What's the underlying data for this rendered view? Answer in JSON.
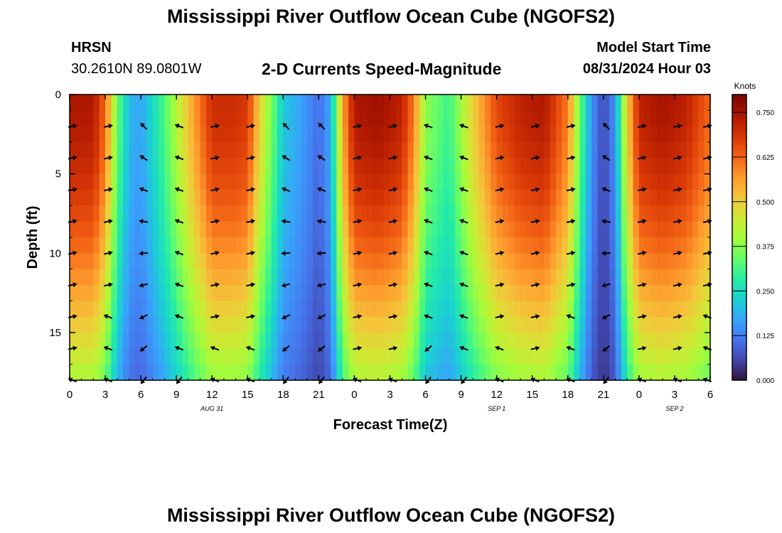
{
  "header": {
    "title": "Mississippi River Outflow Ocean Cube (NGOFS2)",
    "station": "HRSN",
    "coords": "30.2610N  89.0801W",
    "plot_title": "2-D Currents Speed-Magnitude",
    "model_start_label": "Model Start Time",
    "model_start_value": "08/31/2024 Hour 03"
  },
  "footer": {
    "title": "Mississippi River Outflow Ocean Cube (NGOFS2)"
  },
  "colors": {
    "background": "#ffffff",
    "text": "#000000",
    "arrow": "#000000"
  },
  "chart_data": {
    "type": "heatmap",
    "title": "2-D Currents Speed-Magnitude",
    "xlabel": "Forecast Time(Z)",
    "ylabel": "Depth (ft)",
    "xlim": [
      0,
      54
    ],
    "ylim": [
      0,
      18
    ],
    "y_inverted": true,
    "x_ticks": [
      {
        "hour": 0,
        "label": "0"
      },
      {
        "hour": 3,
        "label": "3"
      },
      {
        "hour": 6,
        "label": "6"
      },
      {
        "hour": 9,
        "label": "9"
      },
      {
        "hour": 12,
        "label": "12"
      },
      {
        "hour": 15,
        "label": "15"
      },
      {
        "hour": 18,
        "label": "18"
      },
      {
        "hour": 21,
        "label": "21"
      },
      {
        "hour": 24,
        "label": "0"
      },
      {
        "hour": 27,
        "label": "3"
      },
      {
        "hour": 30,
        "label": "6"
      },
      {
        "hour": 33,
        "label": "9"
      },
      {
        "hour": 36,
        "label": "12"
      },
      {
        "hour": 39,
        "label": "15"
      },
      {
        "hour": 42,
        "label": "18"
      },
      {
        "hour": 45,
        "label": "21"
      },
      {
        "hour": 48,
        "label": "0"
      },
      {
        "hour": 51,
        "label": "3"
      },
      {
        "hour": 54,
        "label": "6"
      }
    ],
    "y_ticks": [
      {
        "depth": 0,
        "label": "0"
      },
      {
        "depth": 5,
        "label": "5"
      },
      {
        "depth": 10,
        "label": "10"
      },
      {
        "depth": 15,
        "label": "15"
      }
    ],
    "date_labels": [
      {
        "hour": 12,
        "label": "AUG 31"
      },
      {
        "hour": 36,
        "label": "SEP 1"
      },
      {
        "hour": 51,
        "label": "SEP 2"
      }
    ],
    "colorbar": {
      "title": "Knots",
      "min": 0,
      "max": 0.8,
      "ticks": [
        "0.000",
        "0.125",
        "0.250",
        "0.375",
        "0.500",
        "0.625",
        "0.750"
      ],
      "tick_values": [
        0,
        0.125,
        0.25,
        0.375,
        0.5,
        0.625,
        0.75
      ]
    },
    "speed_profile": {
      "description": "Approximate surface speed (knots) over forecast time, with depth decay",
      "hours": [
        0,
        2,
        3,
        4,
        5,
        6,
        8,
        10,
        12,
        14,
        15,
        16,
        18,
        20,
        21,
        22,
        23,
        24,
        26,
        28,
        29,
        30,
        32,
        34,
        36,
        38,
        40,
        42,
        43,
        44,
        45,
        46,
        47,
        48,
        50,
        52,
        54
      ],
      "surface_knots": [
        0.74,
        0.74,
        0.62,
        0.35,
        0.2,
        0.17,
        0.32,
        0.52,
        0.7,
        0.7,
        0.68,
        0.5,
        0.22,
        0.15,
        0.1,
        0.18,
        0.55,
        0.74,
        0.76,
        0.72,
        0.6,
        0.38,
        0.3,
        0.5,
        0.66,
        0.72,
        0.74,
        0.6,
        0.35,
        0.15,
        0.06,
        0.15,
        0.5,
        0.72,
        0.75,
        0.72,
        0.62
      ]
    },
    "vector_hours": [
      0,
      3,
      6,
      9,
      12,
      15,
      18,
      21,
      24,
      27,
      30,
      33,
      36,
      39,
      42,
      45,
      48,
      51,
      54
    ],
    "vector_depths": [
      2,
      4,
      6,
      8,
      10,
      12,
      14,
      16,
      18
    ]
  }
}
